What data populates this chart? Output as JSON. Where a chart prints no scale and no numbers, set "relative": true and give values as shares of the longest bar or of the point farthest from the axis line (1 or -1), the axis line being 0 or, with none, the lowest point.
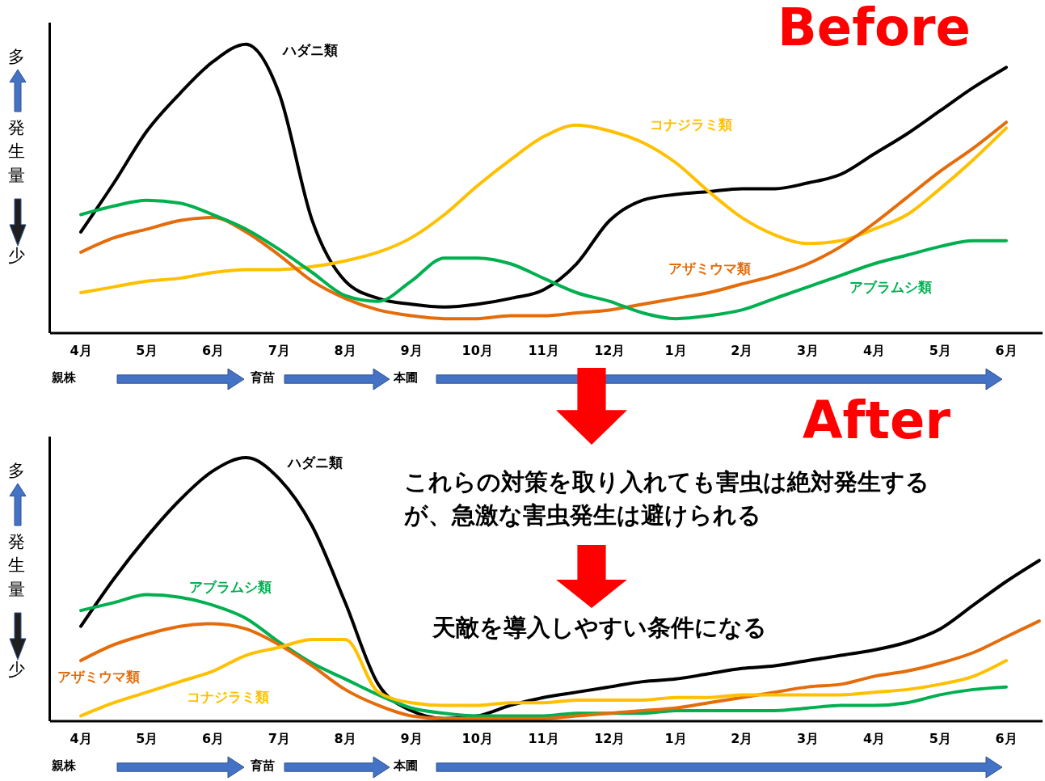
{
  "chart_data": [
    {
      "type": "line",
      "title": "Before",
      "ylabel": "発生量",
      "annotations": [
        "多",
        "少",
        "親株",
        "育苗",
        "本圃"
      ],
      "relative": true,
      "grid": false,
      "legend": false,
      "line_style": "solid",
      "categories": [
        "4月",
        null,
        "5月",
        null,
        "6月",
        null,
        "7月",
        null,
        "8月",
        null,
        "9月",
        null,
        "10月",
        null,
        "11月",
        null,
        "12月",
        null,
        "1月",
        null,
        "2月",
        null,
        "3月",
        null,
        "4月",
        null,
        "5月",
        null,
        "6月"
      ],
      "series": [
        {
          "name": "ハダニ類",
          "color": "#000000",
          "values": [
            0.35,
            0.52,
            0.7,
            0.83,
            0.94,
            1.0,
            0.83,
            0.39,
            0.18,
            0.12,
            0.1,
            0.09,
            0.1,
            0.12,
            0.15,
            0.24,
            0.39,
            0.46,
            0.48,
            0.49,
            0.5,
            0.5,
            0.52,
            0.55,
            0.62,
            0.69,
            0.77,
            0.85,
            0.92
          ]
        },
        {
          "name": "コナジラミ類",
          "color": "#ffc000",
          "values": [
            0.14,
            0.16,
            0.18,
            0.19,
            0.21,
            0.22,
            0.22,
            0.23,
            0.25,
            0.28,
            0.33,
            0.41,
            0.51,
            0.6,
            0.68,
            0.72,
            0.7,
            0.66,
            0.59,
            0.49,
            0.4,
            0.34,
            0.31,
            0.32,
            0.36,
            0.41,
            0.5,
            0.6,
            0.71
          ]
        },
        {
          "name": "アザミウマ類",
          "color": "#e46c0a",
          "values": [
            0.28,
            0.33,
            0.36,
            0.39,
            0.4,
            0.35,
            0.27,
            0.18,
            0.12,
            0.08,
            0.06,
            0.05,
            0.05,
            0.06,
            0.06,
            0.07,
            0.08,
            0.1,
            0.12,
            0.14,
            0.17,
            0.2,
            0.24,
            0.3,
            0.38,
            0.47,
            0.56,
            0.64,
            0.73
          ]
        },
        {
          "name": "アブラムシ類",
          "color": "#00b050",
          "values": [
            0.41,
            0.44,
            0.46,
            0.45,
            0.41,
            0.36,
            0.29,
            0.21,
            0.13,
            0.11,
            0.18,
            0.26,
            0.26,
            0.24,
            0.19,
            0.14,
            0.11,
            0.07,
            0.05,
            0.06,
            0.08,
            0.12,
            0.16,
            0.2,
            0.24,
            0.27,
            0.3,
            0.32,
            0.32
          ]
        }
      ]
    },
    {
      "type": "line",
      "title": "After",
      "ylabel": "発生量",
      "annotations": [
        "多",
        "少",
        "親株",
        "育苗",
        "本圃",
        "これらの対策を取り入れても害虫は絶対発生するが、急激な害虫発生は避けられる",
        "天敵を導入しやすい条件になる"
      ],
      "relative": true,
      "grid": false,
      "legend": false,
      "line_style": "solid",
      "categories": [
        "4月",
        null,
        "5月",
        null,
        "6月",
        null,
        "7月",
        null,
        "8月",
        null,
        "9月",
        null,
        "10月",
        null,
        "11月",
        null,
        "12月",
        null,
        "1月",
        null,
        "2月",
        null,
        "3月",
        null,
        "4月",
        null,
        "5月",
        null,
        "6月",
        null
      ],
      "series": [
        {
          "name": "ハダニ類",
          "color": "#000000",
          "values": [
            0.36,
            0.54,
            0.7,
            0.84,
            0.95,
            1.0,
            0.92,
            0.74,
            0.45,
            0.14,
            0.04,
            0.01,
            0.02,
            0.06,
            0.09,
            0.11,
            0.13,
            0.15,
            0.16,
            0.18,
            0.2,
            0.21,
            0.23,
            0.25,
            0.27,
            0.3,
            0.35,
            0.44,
            0.53,
            0.61
          ]
        },
        {
          "name": "アブラムシ類",
          "color": "#00b050",
          "values": [
            0.42,
            0.45,
            0.48,
            0.47,
            0.44,
            0.39,
            0.3,
            0.22,
            0.16,
            0.1,
            0.05,
            0.03,
            0.02,
            0.02,
            0.02,
            0.03,
            0.03,
            0.03,
            0.04,
            0.04,
            0.04,
            0.04,
            0.05,
            0.06,
            0.06,
            0.07,
            0.1,
            0.12,
            0.13,
            null
          ]
        },
        {
          "name": "アザミウマ類",
          "color": "#e46c0a",
          "values": [
            0.23,
            0.29,
            0.33,
            0.36,
            0.37,
            0.35,
            0.29,
            0.21,
            0.12,
            0.06,
            0.02,
            0.01,
            0.01,
            0.01,
            0.01,
            0.02,
            0.03,
            0.04,
            0.05,
            0.07,
            0.09,
            0.11,
            0.13,
            0.14,
            0.17,
            0.19,
            0.22,
            0.26,
            0.32,
            0.38
          ]
        },
        {
          "name": "コナジラミ類",
          "color": "#ffc000",
          "values": [
            0.02,
            0.07,
            0.11,
            0.15,
            0.19,
            0.25,
            0.28,
            0.31,
            0.31,
            0.11,
            0.07,
            0.06,
            0.06,
            0.07,
            0.07,
            0.08,
            0.08,
            0.08,
            0.09,
            0.09,
            0.1,
            0.1,
            0.1,
            0.1,
            0.11,
            0.12,
            0.14,
            0.17,
            0.23,
            null
          ]
        }
      ]
    }
  ]
}
